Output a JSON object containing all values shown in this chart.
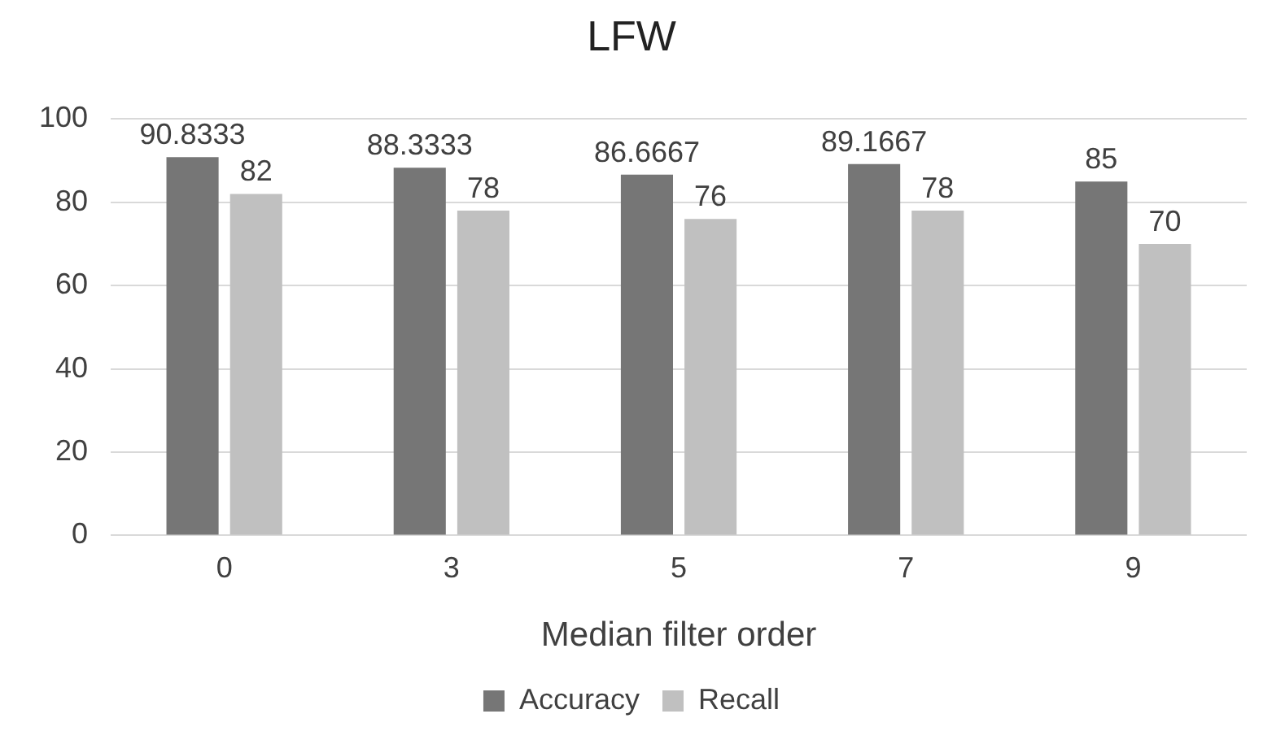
{
  "chart_data": {
    "type": "bar",
    "title": "LFW",
    "xlabel": "Median filter order",
    "categories": [
      "0",
      "3",
      "5",
      "7",
      "9"
    ],
    "series": [
      {
        "name": "Accuracy",
        "color": "#767676",
        "values": [
          90.8333,
          88.3333,
          86.6667,
          89.1667,
          85
        ]
      },
      {
        "name": "Recall",
        "color": "#c0c0c0",
        "values": [
          82,
          78,
          76,
          78,
          70
        ]
      }
    ],
    "ylim": [
      0,
      100
    ],
    "yticks": [
      0,
      20,
      40,
      60,
      80,
      100
    ],
    "grid": "y",
    "legend": "bottom",
    "data_labels": true
  }
}
